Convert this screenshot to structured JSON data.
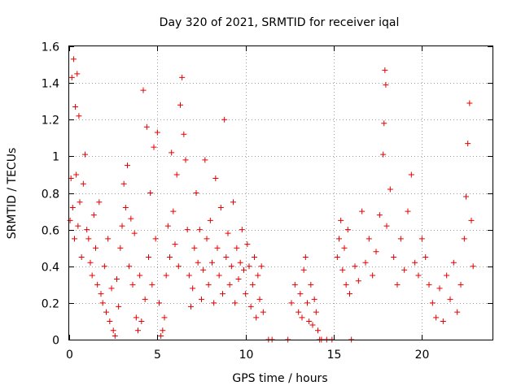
{
  "chart_data": {
    "type": "scatter",
    "title": "Day 320 of 2021, SRMTID for receiver iqal",
    "xlabel": "GPS time / hours",
    "ylabel": "SRMTID / TECUs",
    "xlim": [
      0,
      24
    ],
    "ylim": [
      0,
      1.6
    ],
    "xticks": [
      0,
      5,
      10,
      15,
      20
    ],
    "xtick_labels": [
      "0",
      "5",
      "10",
      "15",
      "20"
    ],
    "yticks": [
      0,
      0.2,
      0.4,
      0.6,
      0.8,
      1,
      1.2,
      1.4,
      1.6
    ],
    "ytick_labels": [
      "0",
      "0.2",
      "0.4",
      "0.6",
      "0.8",
      "1",
      "1.2",
      "1.4",
      "1.6"
    ],
    "grid": true,
    "marker": "+",
    "color": "#e60000",
    "series": [
      {
        "name": "SRMTID",
        "points": [
          [
            0.05,
            0.65
          ],
          [
            0.1,
            0.88
          ],
          [
            0.15,
            1.43
          ],
          [
            0.2,
            0.72
          ],
          [
            0.25,
            1.53
          ],
          [
            0.3,
            0.55
          ],
          [
            0.35,
            1.27
          ],
          [
            0.4,
            0.9
          ],
          [
            0.45,
            1.45
          ],
          [
            0.5,
            0.62
          ],
          [
            0.55,
            1.22
          ],
          [
            0.6,
            0.75
          ],
          [
            0.7,
            0.45
          ],
          [
            0.8,
            0.85
          ],
          [
            0.9,
            1.01
          ],
          [
            1.0,
            0.6
          ],
          [
            1.1,
            0.55
          ],
          [
            1.2,
            0.42
          ],
          [
            1.3,
            0.35
          ],
          [
            1.4,
            0.68
          ],
          [
            1.5,
            0.5
          ],
          [
            1.6,
            0.3
          ],
          [
            1.7,
            0.75
          ],
          [
            1.8,
            0.25
          ],
          [
            1.9,
            0.2
          ],
          [
            2.0,
            0.4
          ],
          [
            2.1,
            0.15
          ],
          [
            2.2,
            0.55
          ],
          [
            2.3,
            0.1
          ],
          [
            2.4,
            0.28
          ],
          [
            2.5,
            0.05
          ],
          [
            2.6,
            0.02
          ],
          [
            2.7,
            0.33
          ],
          [
            2.8,
            0.18
          ],
          [
            2.9,
            0.5
          ],
          [
            3.0,
            0.62
          ],
          [
            3.1,
            0.85
          ],
          [
            3.2,
            0.72
          ],
          [
            3.3,
            0.95
          ],
          [
            3.4,
            0.4
          ],
          [
            3.5,
            0.66
          ],
          [
            3.6,
            0.3
          ],
          [
            3.7,
            0.58
          ],
          [
            3.8,
            0.12
          ],
          [
            3.9,
            0.05
          ],
          [
            4.0,
            0.35
          ],
          [
            4.1,
            0.1
          ],
          [
            4.2,
            1.36
          ],
          [
            4.3,
            0.22
          ],
          [
            4.4,
            1.16
          ],
          [
            4.5,
            0.45
          ],
          [
            4.6,
            0.8
          ],
          [
            4.7,
            0.3
          ],
          [
            4.8,
            1.05
          ],
          [
            4.9,
            0.55
          ],
          [
            5.0,
            1.13
          ],
          [
            5.1,
            0.2
          ],
          [
            5.2,
            0.02
          ],
          [
            5.3,
            0.05
          ],
          [
            5.4,
            0.12
          ],
          [
            5.5,
            0.35
          ],
          [
            5.6,
            0.62
          ],
          [
            5.7,
            0.45
          ],
          [
            5.8,
            1.02
          ],
          [
            5.9,
            0.7
          ],
          [
            6.0,
            0.52
          ],
          [
            6.1,
            0.9
          ],
          [
            6.2,
            0.4
          ],
          [
            6.3,
            1.28
          ],
          [
            6.4,
            1.43
          ],
          [
            6.5,
            1.12
          ],
          [
            6.6,
            0.98
          ],
          [
            6.7,
            0.6
          ],
          [
            6.8,
            0.35
          ],
          [
            6.9,
            0.18
          ],
          [
            7.0,
            0.28
          ],
          [
            7.1,
            0.5
          ],
          [
            7.2,
            0.8
          ],
          [
            7.3,
            0.42
          ],
          [
            7.4,
            0.6
          ],
          [
            7.5,
            0.22
          ],
          [
            7.6,
            0.38
          ],
          [
            7.7,
            0.98
          ],
          [
            7.8,
            0.55
          ],
          [
            7.9,
            0.3
          ],
          [
            8.0,
            0.65
          ],
          [
            8.1,
            0.42
          ],
          [
            8.2,
            0.2
          ],
          [
            8.3,
            0.88
          ],
          [
            8.4,
            0.5
          ],
          [
            8.5,
            0.35
          ],
          [
            8.6,
            0.72
          ],
          [
            8.7,
            0.25
          ],
          [
            8.8,
            1.2
          ],
          [
            8.9,
            0.45
          ],
          [
            9.0,
            0.58
          ],
          [
            9.1,
            0.3
          ],
          [
            9.2,
            0.4
          ],
          [
            9.3,
            0.75
          ],
          [
            9.4,
            0.2
          ],
          [
            9.5,
            0.5
          ],
          [
            9.6,
            0.33
          ],
          [
            9.7,
            0.42
          ],
          [
            9.8,
            0.6
          ],
          [
            9.9,
            0.38
          ],
          [
            10.0,
            0.25
          ],
          [
            10.1,
            0.52
          ],
          [
            10.2,
            0.4
          ],
          [
            10.3,
            0.18
          ],
          [
            10.4,
            0.3
          ],
          [
            10.5,
            0.45
          ],
          [
            10.6,
            0.12
          ],
          [
            10.7,
            0.35
          ],
          [
            10.8,
            0.22
          ],
          [
            10.9,
            0.4
          ],
          [
            11.0,
            0.15
          ],
          [
            11.3,
            0.0
          ],
          [
            11.5,
            0.0
          ],
          [
            12.4,
            0.0
          ],
          [
            12.6,
            0.2
          ],
          [
            12.8,
            0.3
          ],
          [
            13.0,
            0.15
          ],
          [
            13.1,
            0.25
          ],
          [
            13.2,
            0.12
          ],
          [
            13.3,
            0.38
          ],
          [
            13.4,
            0.45
          ],
          [
            13.5,
            0.2
          ],
          [
            13.6,
            0.1
          ],
          [
            13.7,
            0.3
          ],
          [
            13.8,
            0.08
          ],
          [
            13.9,
            0.22
          ],
          [
            14.0,
            0.15
          ],
          [
            14.1,
            0.05
          ],
          [
            14.2,
            0.0
          ],
          [
            14.3,
            0.0
          ],
          [
            14.6,
            0.0
          ],
          [
            14.9,
            0.0
          ],
          [
            15.2,
            0.45
          ],
          [
            15.3,
            0.55
          ],
          [
            15.4,
            0.65
          ],
          [
            15.5,
            0.38
          ],
          [
            15.6,
            0.5
          ],
          [
            15.7,
            0.3
          ],
          [
            15.8,
            0.6
          ],
          [
            15.9,
            0.25
          ],
          [
            16.0,
            0.0
          ],
          [
            16.2,
            0.4
          ],
          [
            16.4,
            0.32
          ],
          [
            16.6,
            0.7
          ],
          [
            16.8,
            0.42
          ],
          [
            17.0,
            0.55
          ],
          [
            17.2,
            0.35
          ],
          [
            17.4,
            0.48
          ],
          [
            17.6,
            0.68
          ],
          [
            17.8,
            1.01
          ],
          [
            17.85,
            1.18
          ],
          [
            17.9,
            1.47
          ],
          [
            17.95,
            1.39
          ],
          [
            18.0,
            0.62
          ],
          [
            18.2,
            0.82
          ],
          [
            18.4,
            0.45
          ],
          [
            18.6,
            0.3
          ],
          [
            18.8,
            0.55
          ],
          [
            19.0,
            0.38
          ],
          [
            19.2,
            0.7
          ],
          [
            19.4,
            0.9
          ],
          [
            19.6,
            0.42
          ],
          [
            19.8,
            0.35
          ],
          [
            20.0,
            0.55
          ],
          [
            20.2,
            0.45
          ],
          [
            20.4,
            0.3
          ],
          [
            20.6,
            0.2
          ],
          [
            20.8,
            0.12
          ],
          [
            21.0,
            0.28
          ],
          [
            21.2,
            0.1
          ],
          [
            21.4,
            0.35
          ],
          [
            21.6,
            0.22
          ],
          [
            21.8,
            0.42
          ],
          [
            22.0,
            0.15
          ],
          [
            22.2,
            0.3
          ],
          [
            22.4,
            0.55
          ],
          [
            22.5,
            0.78
          ],
          [
            22.6,
            1.07
          ],
          [
            22.7,
            1.29
          ],
          [
            22.8,
            0.65
          ],
          [
            22.9,
            0.4
          ]
        ]
      }
    ]
  }
}
